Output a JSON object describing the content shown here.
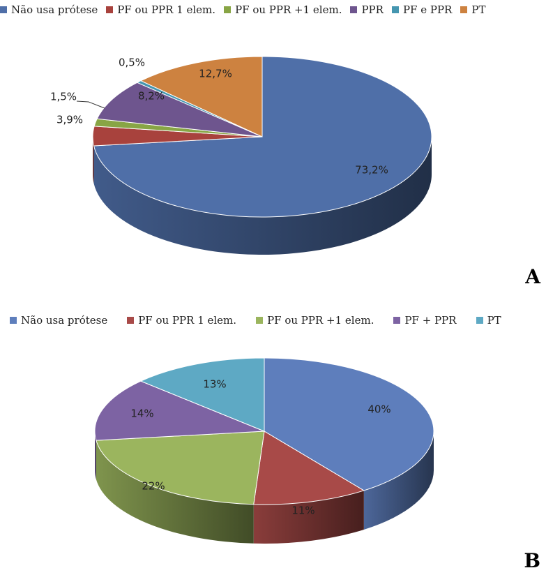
{
  "chart_data": [
    {
      "type": "pie",
      "panel_label": "A",
      "categories": [
        "Não usa prótese",
        "PF ou PPR 1 elem.",
        "PF ou PPR +1 elem.",
        "PPR",
        "PF e PPR",
        "PT"
      ],
      "values": [
        73.2,
        3.9,
        1.5,
        8.2,
        0.5,
        12.7
      ],
      "data_labels": [
        "73,2%",
        "3,9%",
        "1,5%",
        "8,2%",
        "0,5%",
        "12,7%"
      ],
      "colors": [
        "#4F6FA8",
        "#A8423D",
        "#88A545",
        "#6E558E",
        "#4596B0",
        "#CD8240"
      ],
      "legend_position": "top",
      "style": "3d"
    },
    {
      "type": "pie",
      "panel_label": "B",
      "categories": [
        "Não usa prótese",
        "PF ou PPR 1 elem.",
        "PF ou PPR +1 elem.",
        "PF + PPR",
        "PT"
      ],
      "values": [
        40,
        11,
        22,
        14,
        13
      ],
      "data_labels": [
        "40%",
        "11%",
        "22%",
        "14%",
        "13%"
      ],
      "colors": [
        "#5E7EBC",
        "#A84A48",
        "#9BB55E",
        "#7D63A3",
        "#5EA9C4"
      ],
      "legend_position": "top",
      "style": "3d"
    }
  ]
}
